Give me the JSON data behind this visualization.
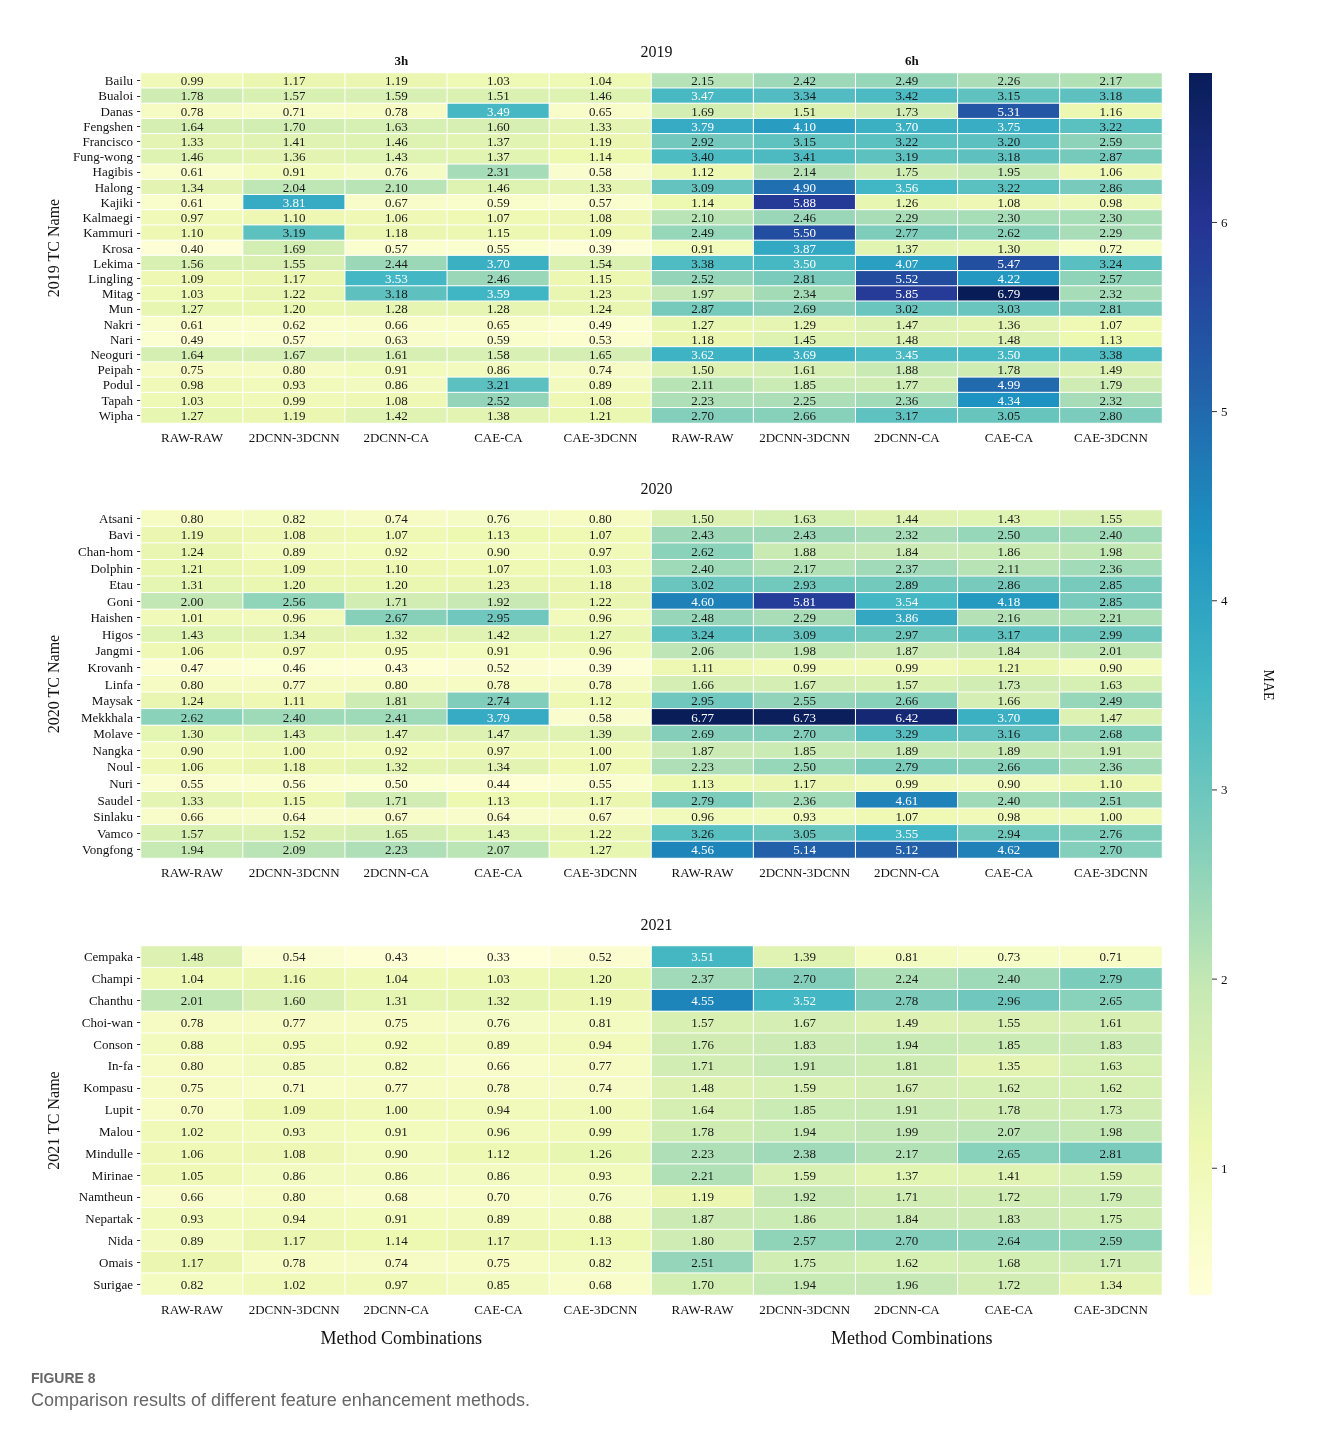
{
  "chart_data": [
    {
      "type": "heatmap",
      "title": "2019",
      "ylabel": "2019 TC Name",
      "annotations": [
        "3h",
        "6h"
      ],
      "clabel": "MAE",
      "clim": [
        0.33,
        6.79
      ],
      "cticks": [
        1,
        2,
        3,
        4,
        5,
        6
      ],
      "data_labels": true,
      "categories": [
        "RAW-RAW",
        "2DCNN-3DCNN",
        "2DCNN-CA",
        "CAE-CA",
        "CAE-3DCNN",
        "RAW-RAW",
        "2DCNN-3DCNN",
        "2DCNN-CA",
        "CAE-CA",
        "CAE-3DCNN"
      ],
      "y_categories": [
        "Bailu",
        "Bualoi",
        "Danas",
        "Fengshen",
        "Francisco",
        "Fung-wong",
        "Hagibis",
        "Halong",
        "Kajiki",
        "Kalmaegi",
        "Kammuri",
        "Krosa",
        "Lekima",
        "Lingling",
        "Mitag",
        "Mun",
        "Nakri",
        "Nari",
        "Neoguri",
        "Peipah",
        "Podul",
        "Tapah",
        "Wipha"
      ],
      "cells": [
        [
          0.99,
          1.17,
          1.19,
          1.03,
          1.04,
          2.15,
          2.42,
          2.49,
          2.26,
          2.17
        ],
        [
          1.78,
          1.57,
          1.59,
          1.51,
          1.46,
          3.47,
          3.34,
          3.42,
          3.15,
          3.18
        ],
        [
          0.78,
          0.71,
          0.78,
          3.49,
          0.65,
          1.69,
          1.51,
          1.73,
          5.31,
          1.16
        ],
        [
          1.64,
          1.7,
          1.63,
          1.6,
          1.33,
          3.79,
          4.1,
          3.7,
          3.75,
          3.22
        ],
        [
          1.33,
          1.41,
          1.46,
          1.37,
          1.19,
          2.92,
          3.15,
          3.22,
          3.2,
          2.59
        ],
        [
          1.46,
          1.36,
          1.43,
          1.37,
          1.14,
          3.4,
          3.41,
          3.19,
          3.18,
          2.87
        ],
        [
          0.61,
          0.91,
          0.76,
          2.31,
          0.58,
          1.12,
          2.14,
          1.75,
          1.95,
          1.06
        ],
        [
          1.34,
          2.04,
          2.1,
          1.46,
          1.33,
          3.09,
          4.9,
          3.56,
          3.22,
          2.86
        ],
        [
          0.61,
          3.81,
          0.67,
          0.59,
          0.57,
          1.14,
          5.88,
          1.26,
          1.08,
          0.98
        ],
        [
          0.97,
          1.1,
          1.06,
          1.07,
          1.08,
          2.1,
          2.46,
          2.29,
          2.3,
          2.3
        ],
        [
          1.1,
          3.19,
          1.18,
          1.15,
          1.09,
          2.49,
          5.5,
          2.77,
          2.62,
          2.29
        ],
        [
          0.4,
          1.69,
          0.57,
          0.55,
          0.39,
          0.91,
          3.87,
          1.37,
          1.3,
          0.72
        ],
        [
          1.56,
          1.55,
          2.44,
          3.7,
          1.54,
          3.38,
          3.5,
          4.07,
          5.47,
          3.24
        ],
        [
          1.09,
          1.17,
          3.53,
          2.46,
          1.15,
          2.52,
          2.81,
          5.52,
          4.22,
          2.57
        ],
        [
          1.03,
          1.22,
          3.18,
          3.59,
          1.23,
          1.97,
          2.34,
          5.85,
          6.79,
          2.32
        ],
        [
          1.27,
          1.2,
          1.28,
          1.28,
          1.24,
          2.87,
          2.69,
          3.02,
          3.03,
          2.81
        ],
        [
          0.61,
          0.62,
          0.66,
          0.65,
          0.49,
          1.27,
          1.29,
          1.47,
          1.36,
          1.07
        ],
        [
          0.49,
          0.57,
          0.63,
          0.59,
          0.53,
          1.18,
          1.45,
          1.48,
          1.48,
          1.13
        ],
        [
          1.64,
          1.67,
          1.61,
          1.58,
          1.65,
          3.62,
          3.69,
          3.45,
          3.5,
          3.38
        ],
        [
          0.75,
          0.8,
          0.91,
          0.86,
          0.74,
          1.5,
          1.61,
          1.88,
          1.78,
          1.49
        ],
        [
          0.98,
          0.93,
          0.86,
          3.21,
          0.89,
          2.11,
          1.85,
          1.77,
          4.99,
          1.79
        ],
        [
          1.03,
          0.99,
          1.08,
          2.52,
          1.08,
          2.23,
          2.25,
          2.36,
          4.34,
          2.32
        ],
        [
          1.27,
          1.19,
          1.42,
          1.38,
          1.21,
          2.7,
          2.66,
          3.17,
          3.05,
          2.8
        ]
      ],
      "cell_labels": [
        [
          "0.99",
          "1.17",
          "1.19",
          "1.03",
          "1.04",
          "2.15",
          "2.42",
          "2.49",
          "2.26",
          "2.17"
        ],
        [
          "1.78",
          "1.57",
          "1.59",
          "1.51",
          "1.46",
          "3.47",
          "3.34",
          "3.42",
          "3.15",
          "3.18"
        ],
        [
          "0.78",
          "0.71",
          "0.78",
          "3.49",
          "0.65",
          "1.69",
          "1.51",
          "1.73",
          "5.31",
          "1.16"
        ],
        [
          "1.64",
          "1.70",
          "1.63",
          "1.60",
          "1.33",
          "3.79",
          "4.10",
          "3.70",
          "3.75",
          "3.22"
        ],
        [
          "1.33",
          "1.41",
          "1.46",
          "1.37",
          "1.19",
          "2.92",
          "3.15",
          "3.22",
          "3.20",
          "2.59"
        ],
        [
          "1.46",
          "1.36",
          "1.43",
          "1.37",
          "1.14",
          "3.40",
          "3.41",
          "3.19",
          "3.18",
          "2.87"
        ],
        [
          "0.61",
          "0.91",
          "0.76",
          "2.31",
          "0.58",
          "1.12",
          "2.14",
          "1.75",
          "1.95",
          "1.06"
        ],
        [
          "1.34",
          "2.04",
          "2.10",
          "1.46",
          "1.33",
          "3.09",
          "4.90",
          "3.56",
          "3.22",
          "2.86"
        ],
        [
          "0.61",
          "3.81",
          "0.67",
          "0.59",
          "0.57",
          "1.14",
          "5.88",
          "1.26",
          "1.08",
          "0.98"
        ],
        [
          "0.97",
          "1.10",
          "1.06",
          "1.07",
          "1.08",
          "2.10",
          "2.46",
          "2.29",
          "2.30",
          "2.30"
        ],
        [
          "1.10",
          "3.19",
          "1.18",
          "1.15",
          "1.09",
          "2.49",
          "5.50",
          "2.77",
          "2.62",
          "2.29"
        ],
        [
          "0.40",
          "1.69",
          "0.57",
          "0.55",
          "0.39",
          "0.91",
          "3.87",
          "1.37",
          "1.30",
          "0.72"
        ],
        [
          "1.56",
          "1.55",
          "2.44",
          "3.70",
          "1.54",
          "3.38",
          "3.50",
          "4.07",
          "5.47",
          "3.24"
        ],
        [
          "1.09",
          "1.17",
          "3.53",
          "2.46",
          "1.15",
          "2.52",
          "2.81",
          "5.52",
          "4.22",
          "2.57"
        ],
        [
          "1.03",
          "1.22",
          "3.18",
          "3.59",
          "1.23",
          "1.97",
          "2.34",
          "5.85",
          "6.79",
          "2.32"
        ],
        [
          "1.27",
          "1.20",
          "1.28",
          "1.28",
          "1.24",
          "2.87",
          "2.69",
          "3.02",
          "3.03",
          "2.81"
        ],
        [
          "0.61",
          "0.62",
          "0.66",
          "0.65",
          "0.49",
          "1.27",
          "1.29",
          "1.47",
          "1.36",
          "1.07"
        ],
        [
          "0.49",
          "0.57",
          "0.63",
          "0.59",
          "0.53",
          "1.18",
          "1.45",
          "1.48",
          "1.48",
          "1.13"
        ],
        [
          "1.64",
          "1.67",
          "1.61",
          "1.58",
          "1.65",
          "3.62",
          "3.69",
          "3.45",
          "3.50",
          "3.38"
        ],
        [
          "0.75",
          "0.80",
          "0.91",
          "0.86",
          "0.74",
          "1.50",
          "1.61",
          "1.88",
          "1.78",
          "1.49"
        ],
        [
          "0.98",
          "0.93",
          "0.86",
          "3.21",
          "0.89",
          "2.11",
          "1.85",
          "1.77",
          "4.99",
          "1.79"
        ],
        [
          "1.03",
          "0.99",
          "1.08",
          "2.52",
          "1.08",
          "2.23",
          "2.25",
          "2.36",
          "4.34",
          "2.32"
        ],
        [
          "1.27",
          "1.19",
          "1.42",
          "1.38",
          "1.21",
          "2.70",
          "2.66",
          "3.17",
          "3.05",
          "2.80"
        ]
      ]
    },
    {
      "type": "heatmap",
      "title": "2020",
      "ylabel": "2020 TC Name",
      "data_labels": true,
      "categories": [
        "RAW-RAW",
        "2DCNN-3DCNN",
        "2DCNN-CA",
        "CAE-CA",
        "CAE-3DCNN",
        "RAW-RAW",
        "2DCNN-3DCNN",
        "2DCNN-CA",
        "CAE-CA",
        "CAE-3DCNN"
      ],
      "y_categories": [
        "Atsani",
        "Bavi",
        "Chan-hom",
        "Dolphin",
        "Etau",
        "Goni",
        "Haishen",
        "Higos",
        "Jangmi",
        "Krovanh",
        "Linfa",
        "Maysak",
        "Mekkhala",
        "Molave",
        "Nangka",
        "Noul",
        "Nuri",
        "Saudel",
        "Sinlaku",
        "Vamco",
        "Vongfong"
      ],
      "cells": [
        [
          0.8,
          0.82,
          0.74,
          0.76,
          0.8,
          1.5,
          1.63,
          1.44,
          1.43,
          1.55
        ],
        [
          1.19,
          1.08,
          1.07,
          1.13,
          1.07,
          2.43,
          2.43,
          2.32,
          2.5,
          2.4
        ],
        [
          1.24,
          0.89,
          0.92,
          0.9,
          0.97,
          2.62,
          1.88,
          1.84,
          1.86,
          1.98
        ],
        [
          1.21,
          1.09,
          1.1,
          1.07,
          1.03,
          2.4,
          2.17,
          2.37,
          2.11,
          2.36
        ],
        [
          1.31,
          1.2,
          1.2,
          1.23,
          1.18,
          3.02,
          2.93,
          2.89,
          2.86,
          2.85
        ],
        [
          2.0,
          2.56,
          1.71,
          1.92,
          1.22,
          4.6,
          5.81,
          3.54,
          4.18,
          2.85
        ],
        [
          1.01,
          0.96,
          2.67,
          2.95,
          0.96,
          2.48,
          2.29,
          3.86,
          2.16,
          2.21
        ],
        [
          1.43,
          1.34,
          1.32,
          1.42,
          1.27,
          3.24,
          3.09,
          2.97,
          3.17,
          2.99
        ],
        [
          1.06,
          0.97,
          0.95,
          0.91,
          0.96,
          2.06,
          1.98,
          1.87,
          1.84,
          2.01
        ],
        [
          0.47,
          0.46,
          0.43,
          0.52,
          0.39,
          1.11,
          0.99,
          0.99,
          1.21,
          0.9
        ],
        [
          0.8,
          0.77,
          0.8,
          0.78,
          0.78,
          1.66,
          1.67,
          1.57,
          1.73,
          1.63
        ],
        [
          1.24,
          1.11,
          1.81,
          2.74,
          1.12,
          2.95,
          2.55,
          2.66,
          1.66,
          2.49
        ],
        [
          2.62,
          2.4,
          2.41,
          3.79,
          0.58,
          6.77,
          6.73,
          6.42,
          3.7,
          1.47
        ],
        [
          1.3,
          1.43,
          1.47,
          1.47,
          1.39,
          2.69,
          2.7,
          3.29,
          3.16,
          2.68
        ],
        [
          0.9,
          1.0,
          0.92,
          0.97,
          1.0,
          1.87,
          1.85,
          1.89,
          1.89,
          1.91
        ],
        [
          1.06,
          1.18,
          1.32,
          1.34,
          1.07,
          2.23,
          2.5,
          2.79,
          2.66,
          2.36
        ],
        [
          0.55,
          0.56,
          0.5,
          0.44,
          0.55,
          1.13,
          1.17,
          0.99,
          0.9,
          1.1
        ],
        [
          1.33,
          1.15,
          1.71,
          1.13,
          1.17,
          2.79,
          2.36,
          4.61,
          2.4,
          2.51
        ],
        [
          0.66,
          0.64,
          0.67,
          0.64,
          0.67,
          0.96,
          0.93,
          1.07,
          0.98,
          1.0
        ],
        [
          1.57,
          1.52,
          1.65,
          1.43,
          1.22,
          3.26,
          3.05,
          3.55,
          2.94,
          2.76
        ],
        [
          1.94,
          2.09,
          2.23,
          2.07,
          1.27,
          4.56,
          5.14,
          5.12,
          4.62,
          2.7
        ]
      ],
      "cell_labels": [
        [
          "0.80",
          "0.82",
          "0.74",
          "0.76",
          "0.80",
          "1.50",
          "1.63",
          "1.44",
          "1.43",
          "1.55"
        ],
        [
          "1.19",
          "1.08",
          "1.07",
          "1.13",
          "1.07",
          "2.43",
          "2.43",
          "2.32",
          "2.50",
          "2.40"
        ],
        [
          "1.24",
          "0.89",
          "0.92",
          "0.90",
          "0.97",
          "2.62",
          "1.88",
          "1.84",
          "1.86",
          "1.98"
        ],
        [
          "1.21",
          "1.09",
          "1.10",
          "1.07",
          "1.03",
          "2.40",
          "2.17",
          "2.37",
          "2.11",
          "2.36"
        ],
        [
          "1.31",
          "1.20",
          "1.20",
          "1.23",
          "1.18",
          "3.02",
          "2.93",
          "2.89",
          "2.86",
          "2.85"
        ],
        [
          "2.00",
          "2.56",
          "1.71",
          "1.92",
          "1.22",
          "4.60",
          "5.81",
          "3.54",
          "4.18",
          "2.85"
        ],
        [
          "1.01",
          "0.96",
          "2.67",
          "2.95",
          "0.96",
          "2.48",
          "2.29",
          "3.86",
          "2.16",
          "2.21"
        ],
        [
          "1.43",
          "1.34",
          "1.32",
          "1.42",
          "1.27",
          "3.24",
          "3.09",
          "2.97",
          "3.17",
          "2.99"
        ],
        [
          "1.06",
          "0.97",
          "0.95",
          "0.91",
          "0.96",
          "2.06",
          "1.98",
          "1.87",
          "1.84",
          "2.01"
        ],
        [
          "0.47",
          "0.46",
          "0.43",
          "0.52",
          "0.39",
          "1.11",
          "0.99",
          "0.99",
          "1.21",
          "0.90"
        ],
        [
          "0.80",
          "0.77",
          "0.80",
          "0.78",
          "0.78",
          "1.66",
          "1.67",
          "1.57",
          "1.73",
          "1.63"
        ],
        [
          "1.24",
          "1.11",
          "1.81",
          "2.74",
          "1.12",
          "2.95",
          "2.55",
          "2.66",
          "1.66",
          "2.49"
        ],
        [
          "2.62",
          "2.40",
          "2.41",
          "3.79",
          "0.58",
          "6.77",
          "6.73",
          "6.42",
          "3.70",
          "1.47"
        ],
        [
          "1.30",
          "1.43",
          "1.47",
          "1.47",
          "1.39",
          "2.69",
          "2.70",
          "3.29",
          "3.16",
          "2.68"
        ],
        [
          "0.90",
          "1.00",
          "0.92",
          "0.97",
          "1.00",
          "1.87",
          "1.85",
          "1.89",
          "1.89",
          "1.91"
        ],
        [
          "1.06",
          "1.18",
          "1.32",
          "1.34",
          "1.07",
          "2.23",
          "2.50",
          "2.79",
          "2.66",
          "2.36"
        ],
        [
          "0.55",
          "0.56",
          "0.50",
          "0.44",
          "0.55",
          "1.13",
          "1.17",
          "0.99",
          "0.90",
          "1.10"
        ],
        [
          "1.33",
          "1.15",
          "1.71",
          "1.13",
          "1.17",
          "2.79",
          "2.36",
          "4.61",
          "2.40",
          "2.51"
        ],
        [
          "0.66",
          "0.64",
          "0.67",
          "0.64",
          "0.67",
          "0.96",
          "0.93",
          "1.07",
          "0.98",
          "1.00"
        ],
        [
          "1.57",
          "1.52",
          "1.65",
          "1.43",
          "1.22",
          "3.26",
          "3.05",
          "3.55",
          "2.94",
          "2.76"
        ],
        [
          "1.94",
          "2.09",
          "2.23",
          "2.07",
          "1.27",
          "4.56",
          "5.14",
          "5.12",
          "4.62",
          "2.70"
        ]
      ]
    },
    {
      "type": "heatmap",
      "title": "2021",
      "ylabel": "2021 TC Name",
      "xlabel": "Method Combinations",
      "annotations": [
        "FIGURE 8",
        "Comparison results of different feature enhancement methods."
      ],
      "data_labels": true,
      "categories": [
        "RAW-RAW",
        "2DCNN-3DCNN",
        "2DCNN-CA",
        "CAE-CA",
        "CAE-3DCNN",
        "RAW-RAW",
        "2DCNN-3DCNN",
        "2DCNN-CA",
        "CAE-CA",
        "CAE-3DCNN"
      ],
      "y_categories": [
        "Cempaka",
        "Champi",
        "Chanthu",
        "Choi-wan",
        "Conson",
        "In-fa",
        "Kompasu",
        "Lupit",
        "Malou",
        "Mindulle",
        "Mirinae",
        "Namtheun",
        "Nepartak",
        "Nida",
        "Omais",
        "Surigae"
      ],
      "cells": [
        [
          1.48,
          0.54,
          0.43,
          0.33,
          0.52,
          3.51,
          1.39,
          0.81,
          0.73,
          0.71
        ],
        [
          1.04,
          1.16,
          1.04,
          1.03,
          1.2,
          2.37,
          2.7,
          2.24,
          2.4,
          2.79
        ],
        [
          2.01,
          1.6,
          1.31,
          1.32,
          1.19,
          4.55,
          3.52,
          2.78,
          2.96,
          2.65
        ],
        [
          0.78,
          0.77,
          0.75,
          0.76,
          0.81,
          1.57,
          1.67,
          1.49,
          1.55,
          1.61
        ],
        [
          0.88,
          0.95,
          0.92,
          0.89,
          0.94,
          1.76,
          1.83,
          1.94,
          1.85,
          1.83
        ],
        [
          0.8,
          0.85,
          0.82,
          0.66,
          0.77,
          1.71,
          1.91,
          1.81,
          1.35,
          1.63
        ],
        [
          0.75,
          0.71,
          0.77,
          0.78,
          0.74,
          1.48,
          1.59,
          1.67,
          1.62,
          1.62
        ],
        [
          0.7,
          1.09,
          1.0,
          0.94,
          1.0,
          1.64,
          1.85,
          1.91,
          1.78,
          1.73
        ],
        [
          1.02,
          0.93,
          0.91,
          0.96,
          0.99,
          1.78,
          1.94,
          1.99,
          2.07,
          1.98
        ],
        [
          1.06,
          1.08,
          0.9,
          1.12,
          1.26,
          2.23,
          2.38,
          2.17,
          2.65,
          2.81
        ],
        [
          1.05,
          0.86,
          0.86,
          0.86,
          0.93,
          2.21,
          1.59,
          1.37,
          1.41,
          1.59
        ],
        [
          0.66,
          0.8,
          0.68,
          0.7,
          0.76,
          1.19,
          1.92,
          1.71,
          1.72,
          1.79
        ],
        [
          0.93,
          0.94,
          0.91,
          0.89,
          0.88,
          1.87,
          1.86,
          1.84,
          1.83,
          1.75
        ],
        [
          0.89,
          1.17,
          1.14,
          1.17,
          1.13,
          1.8,
          2.57,
          2.7,
          2.64,
          2.59
        ],
        [
          1.17,
          0.78,
          0.74,
          0.75,
          0.82,
          2.51,
          1.75,
          1.62,
          1.68,
          1.71
        ],
        [
          0.82,
          1.02,
          0.97,
          0.85,
          0.68,
          1.7,
          1.94,
          1.96,
          1.72,
          1.34
        ]
      ],
      "cell_labels": [
        [
          "1.48",
          "0.54",
          "0.43",
          "0.33",
          "0.52",
          "3.51",
          "1.39",
          "0.81",
          "0.73",
          "0.71"
        ],
        [
          "1.04",
          "1.16",
          "1.04",
          "1.03",
          "1.20",
          "2.37",
          "2.70",
          "2.24",
          "2.40",
          "2.79"
        ],
        [
          "2.01",
          "1.60",
          "1.31",
          "1.32",
          "1.19",
          "4.55",
          "3.52",
          "2.78",
          "2.96",
          "2.65"
        ],
        [
          "0.78",
          "0.77",
          "0.75",
          "0.76",
          "0.81",
          "1.57",
          "1.67",
          "1.49",
          "1.55",
          "1.61"
        ],
        [
          "0.88",
          "0.95",
          "0.92",
          "0.89",
          "0.94",
          "1.76",
          "1.83",
          "1.94",
          "1.85",
          "1.83"
        ],
        [
          "0.80",
          "0.85",
          "0.82",
          "0.66",
          "0.77",
          "1.71",
          "1.91",
          "1.81",
          "1.35",
          "1.63"
        ],
        [
          "0.75",
          "0.71",
          "0.77",
          "0.78",
          "0.74",
          "1.48",
          "1.59",
          "1.67",
          "1.62",
          "1.62"
        ],
        [
          "0.70",
          "1.09",
          "1.00",
          "0.94",
          "1.00",
          "1.64",
          "1.85",
          "1.91",
          "1.78",
          "1.73"
        ],
        [
          "1.02",
          "0.93",
          "0.91",
          "0.96",
          "0.99",
          "1.78",
          "1.94",
          "1.99",
          "2.07",
          "1.98"
        ],
        [
          "1.06",
          "1.08",
          "0.90",
          "1.12",
          "1.26",
          "2.23",
          "2.38",
          "2.17",
          "2.65",
          "2.81"
        ],
        [
          "1.05",
          "0.86",
          "0.86",
          "0.86",
          "0.93",
          "2.21",
          "1.59",
          "1.37",
          "1.41",
          "1.59"
        ],
        [
          "0.66",
          "0.80",
          "0.68",
          "0.70",
          "0.76",
          "1.19",
          "1.92",
          "1.71",
          "1.72",
          "1.79"
        ],
        [
          "0.93",
          "0.94",
          "0.91",
          "0.89",
          "0.88",
          "1.87",
          "1.86",
          "1.84",
          "1.83",
          "1.75"
        ],
        [
          "0.89",
          "1.17",
          "1.14",
          "1.17",
          "1.13",
          "1.80",
          "2.57",
          "2.70",
          "2.64",
          "2.59"
        ],
        [
          "1.17",
          "0.78",
          "0.74",
          "0.75",
          "0.82",
          "2.51",
          "1.75",
          "1.62",
          "1.68",
          "1.71"
        ],
        [
          "0.82",
          "1.02",
          "0.97",
          "0.85",
          "0.68",
          "1.70",
          "1.94",
          "1.96",
          "1.72",
          "1.34"
        ]
      ]
    }
  ]
}
